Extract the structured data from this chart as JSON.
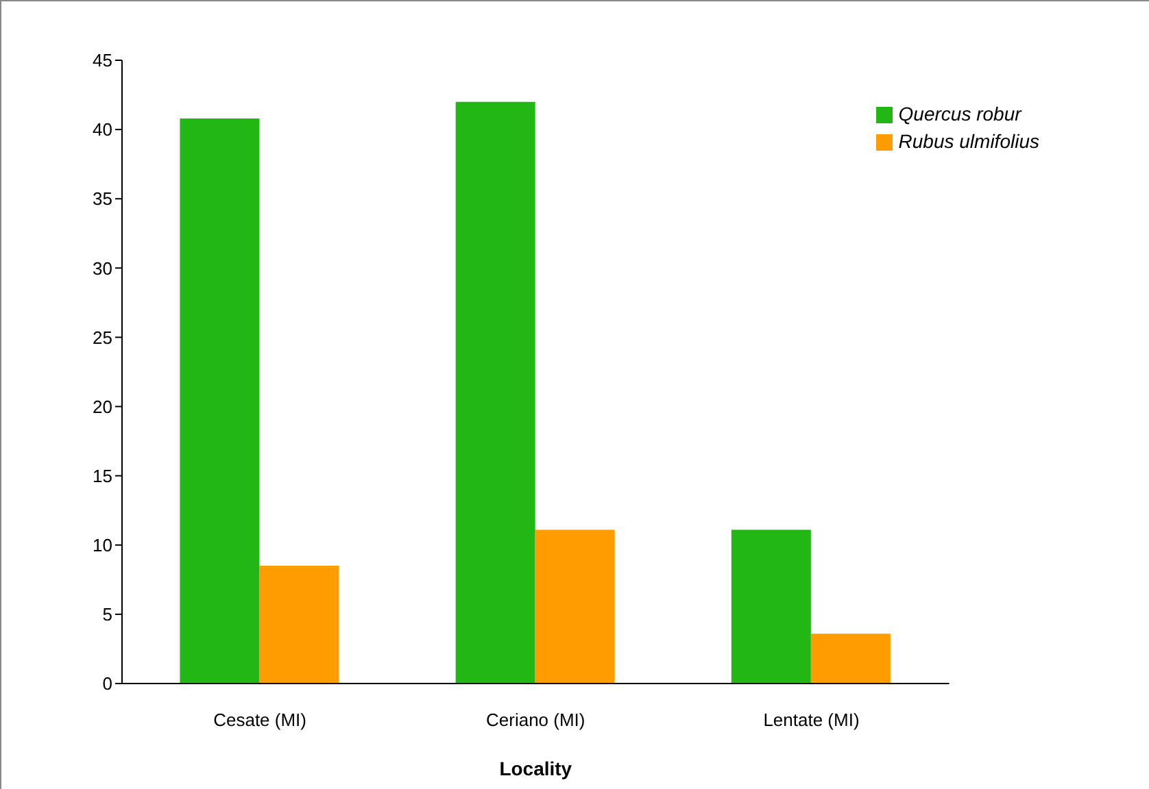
{
  "chart_data": {
    "type": "bar",
    "xlabel": "Locality",
    "categories": [
      "Cesate (MI)",
      "Ceriano (MI)",
      "Lentate (MI)"
    ],
    "series": [
      {
        "name": "Quercus robur",
        "color": "#22b714",
        "values": [
          40.8,
          42.0,
          11.1
        ]
      },
      {
        "name": "Rubus ulmifolius",
        "color": "#ff9c00",
        "values": [
          8.5,
          11.1,
          3.6
        ]
      }
    ],
    "ylim": [
      0,
      45
    ],
    "yticks": [
      0,
      5,
      10,
      15,
      20,
      25,
      30,
      35,
      40,
      45
    ],
    "grid": false,
    "legend": "top right"
  }
}
